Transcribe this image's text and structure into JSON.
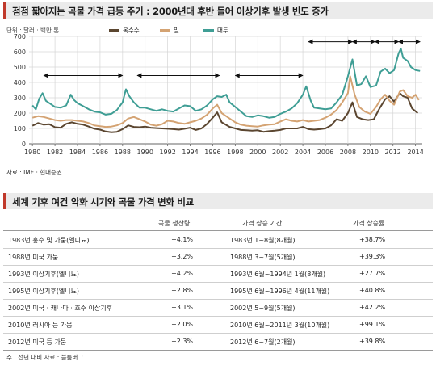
{
  "top_panel": {
    "title": "점점 짧아지는 곡물 가격 급등 주기 : 2000년대 후반 들어 이상기후 발생 빈도 증가",
    "unit": "단위 : 달러 · 백만 톤",
    "source": "자료 : IMF · 현대증권"
  },
  "chart_data": {
    "type": "line",
    "xlim": [
      1979.7,
      2014.6
    ],
    "ylim": [
      0,
      700
    ],
    "y_ticks": [
      "0",
      "100",
      "200",
      "300",
      "400",
      "500",
      "600",
      "700"
    ],
    "y_tick_values": [
      0,
      100,
      200,
      300,
      400,
      500,
      600,
      700
    ],
    "x_ticks": [
      "1980",
      "1982",
      "1984",
      "1986",
      "1988",
      "1990",
      "1992",
      "1994",
      "1996",
      "1998",
      "2000",
      "2002",
      "2004",
      "2006",
      "2008",
      "2010",
      "2012",
      "2014"
    ],
    "x_tick_values": [
      1980,
      1982,
      1984,
      1986,
      1988,
      1990,
      1992,
      1994,
      1996,
      1998,
      2000,
      2002,
      2004,
      2006,
      2008,
      2010,
      2012,
      2014
    ],
    "grid": true,
    "legend_placement": "top",
    "series": [
      {
        "name": "옥수수",
        "color": "#5b4630",
        "points": [
          [
            1980.0,
            118
          ],
          [
            1980.5,
            135
          ],
          [
            1981.0,
            125
          ],
          [
            1981.5,
            128
          ],
          [
            1982.0,
            108
          ],
          [
            1982.5,
            105
          ],
          [
            1983.0,
            130
          ],
          [
            1983.5,
            140
          ],
          [
            1984.0,
            130
          ],
          [
            1984.5,
            125
          ],
          [
            1985.0,
            112
          ],
          [
            1985.5,
            98
          ],
          [
            1986.0,
            92
          ],
          [
            1986.5,
            80
          ],
          [
            1987.0,
            75
          ],
          [
            1987.5,
            78
          ],
          [
            1988.0,
            95
          ],
          [
            1988.5,
            120
          ],
          [
            1989.0,
            110
          ],
          [
            1989.5,
            108
          ],
          [
            1990.0,
            112
          ],
          [
            1990.5,
            105
          ],
          [
            1991.0,
            102
          ],
          [
            1991.5,
            100
          ],
          [
            1992.0,
            98
          ],
          [
            1992.5,
            95
          ],
          [
            1993.0,
            92
          ],
          [
            1993.5,
            98
          ],
          [
            1994.0,
            105
          ],
          [
            1994.5,
            90
          ],
          [
            1995.0,
            100
          ],
          [
            1995.5,
            130
          ],
          [
            1996.0,
            170
          ],
          [
            1996.4,
            205
          ],
          [
            1996.8,
            140
          ],
          [
            1997.5,
            110
          ],
          [
            1998.0,
            100
          ],
          [
            1998.5,
            90
          ],
          [
            1999.0,
            88
          ],
          [
            1999.5,
            85
          ],
          [
            2000.0,
            88
          ],
          [
            2000.5,
            78
          ],
          [
            2001.0,
            82
          ],
          [
            2001.5,
            85
          ],
          [
            2002.0,
            90
          ],
          [
            2002.5,
            100
          ],
          [
            2003.0,
            100
          ],
          [
            2003.5,
            100
          ],
          [
            2004.0,
            110
          ],
          [
            2004.5,
            95
          ],
          [
            2005.0,
            92
          ],
          [
            2005.5,
            95
          ],
          [
            2006.0,
            100
          ],
          [
            2006.5,
            120
          ],
          [
            2007.0,
            160
          ],
          [
            2007.5,
            150
          ],
          [
            2008.0,
            200
          ],
          [
            2008.4,
            270
          ],
          [
            2008.8,
            175
          ],
          [
            2009.3,
            160
          ],
          [
            2009.8,
            155
          ],
          [
            2010.3,
            160
          ],
          [
            2010.8,
            230
          ],
          [
            2011.3,
            290
          ],
          [
            2011.7,
            310
          ],
          [
            2012.1,
            275
          ],
          [
            2012.6,
            330
          ],
          [
            2012.9,
            310
          ],
          [
            2013.3,
            300
          ],
          [
            2013.7,
            230
          ],
          [
            2014.2,
            200
          ]
        ]
      },
      {
        "name": "밀",
        "color": "#d4a373",
        "points": [
          [
            1980.0,
            170
          ],
          [
            1980.5,
            180
          ],
          [
            1981.0,
            175
          ],
          [
            1981.5,
            165
          ],
          [
            1982.0,
            155
          ],
          [
            1982.5,
            150
          ],
          [
            1983.0,
            155
          ],
          [
            1983.5,
            155
          ],
          [
            1984.0,
            150
          ],
          [
            1984.5,
            145
          ],
          [
            1985.0,
            135
          ],
          [
            1985.5,
            120
          ],
          [
            1986.0,
            115
          ],
          [
            1986.5,
            110
          ],
          [
            1987.0,
            112
          ],
          [
            1987.5,
            120
          ],
          [
            1988.0,
            135
          ],
          [
            1988.5,
            165
          ],
          [
            1989.0,
            175
          ],
          [
            1989.5,
            160
          ],
          [
            1990.0,
            145
          ],
          [
            1990.5,
            125
          ],
          [
            1991.0,
            118
          ],
          [
            1991.5,
            128
          ],
          [
            1992.0,
            150
          ],
          [
            1992.5,
            145
          ],
          [
            1993.0,
            135
          ],
          [
            1993.5,
            130
          ],
          [
            1994.0,
            140
          ],
          [
            1994.5,
            150
          ],
          [
            1995.0,
            165
          ],
          [
            1995.5,
            190
          ],
          [
            1996.0,
            230
          ],
          [
            1996.4,
            255
          ],
          [
            1996.8,
            200
          ],
          [
            1997.5,
            165
          ],
          [
            1998.0,
            140
          ],
          [
            1998.5,
            125
          ],
          [
            1999.0,
            118
          ],
          [
            1999.5,
            115
          ],
          [
            2000.0,
            112
          ],
          [
            2000.5,
            120
          ],
          [
            2001.0,
            125
          ],
          [
            2001.5,
            128
          ],
          [
            2002.0,
            145
          ],
          [
            2002.5,
            160
          ],
          [
            2003.0,
            150
          ],
          [
            2003.5,
            145
          ],
          [
            2004.0,
            155
          ],
          [
            2004.5,
            145
          ],
          [
            2005.0,
            150
          ],
          [
            2005.5,
            155
          ],
          [
            2006.0,
            170
          ],
          [
            2006.5,
            190
          ],
          [
            2007.0,
            220
          ],
          [
            2007.5,
            270
          ],
          [
            2008.0,
            330
          ],
          [
            2008.2,
            440
          ],
          [
            2008.6,
            320
          ],
          [
            2009.0,
            240
          ],
          [
            2009.5,
            210
          ],
          [
            2010.0,
            195
          ],
          [
            2010.5,
            240
          ],
          [
            2010.9,
            290
          ],
          [
            2011.3,
            320
          ],
          [
            2011.7,
            280
          ],
          [
            2012.1,
            255
          ],
          [
            2012.6,
            340
          ],
          [
            2012.9,
            350
          ],
          [
            2013.3,
            310
          ],
          [
            2013.7,
            300
          ],
          [
            2014.0,
            320
          ],
          [
            2014.3,
            285
          ]
        ]
      },
      {
        "name": "대두",
        "color": "#3f9e95",
        "points": [
          [
            1980.0,
            250
          ],
          [
            1980.3,
            225
          ],
          [
            1980.6,
            295
          ],
          [
            1980.9,
            330
          ],
          [
            1981.2,
            280
          ],
          [
            1981.6,
            260
          ],
          [
            1982.0,
            240
          ],
          [
            1982.5,
            235
          ],
          [
            1983.0,
            250
          ],
          [
            1983.4,
            320
          ],
          [
            1983.7,
            285
          ],
          [
            1984.0,
            265
          ],
          [
            1984.5,
            245
          ],
          [
            1985.0,
            225
          ],
          [
            1985.5,
            210
          ],
          [
            1986.0,
            205
          ],
          [
            1986.5,
            190
          ],
          [
            1987.0,
            195
          ],
          [
            1987.5,
            220
          ],
          [
            1988.0,
            270
          ],
          [
            1988.3,
            355
          ],
          [
            1988.6,
            310
          ],
          [
            1989.0,
            270
          ],
          [
            1989.5,
            235
          ],
          [
            1990.0,
            235
          ],
          [
            1990.5,
            225
          ],
          [
            1991.0,
            215
          ],
          [
            1991.5,
            225
          ],
          [
            1992.0,
            215
          ],
          [
            1992.5,
            210
          ],
          [
            1993.0,
            230
          ],
          [
            1993.5,
            250
          ],
          [
            1994.0,
            245
          ],
          [
            1994.5,
            215
          ],
          [
            1995.0,
            225
          ],
          [
            1995.5,
            250
          ],
          [
            1996.0,
            290
          ],
          [
            1996.4,
            310
          ],
          [
            1996.8,
            305
          ],
          [
            1997.2,
            320
          ],
          [
            1997.5,
            270
          ],
          [
            1998.0,
            240
          ],
          [
            1998.5,
            210
          ],
          [
            1999.0,
            180
          ],
          [
            1999.5,
            175
          ],
          [
            2000.0,
            185
          ],
          [
            2000.5,
            180
          ],
          [
            2001.0,
            170
          ],
          [
            2001.5,
            175
          ],
          [
            2002.0,
            195
          ],
          [
            2002.5,
            210
          ],
          [
            2003.0,
            230
          ],
          [
            2003.5,
            265
          ],
          [
            2004.0,
            320
          ],
          [
            2004.3,
            375
          ],
          [
            2004.7,
            280
          ],
          [
            2005.0,
            235
          ],
          [
            2005.5,
            230
          ],
          [
            2006.0,
            225
          ],
          [
            2006.5,
            230
          ],
          [
            2007.0,
            270
          ],
          [
            2007.5,
            320
          ],
          [
            2008.0,
            440
          ],
          [
            2008.4,
            550
          ],
          [
            2008.8,
            380
          ],
          [
            2009.2,
            390
          ],
          [
            2009.6,
            440
          ],
          [
            2010.0,
            370
          ],
          [
            2010.5,
            380
          ],
          [
            2010.9,
            470
          ],
          [
            2011.3,
            490
          ],
          [
            2011.7,
            460
          ],
          [
            2012.1,
            480
          ],
          [
            2012.5,
            590
          ],
          [
            2012.7,
            620
          ],
          [
            2012.9,
            560
          ],
          [
            2013.3,
            540
          ],
          [
            2013.6,
            500
          ],
          [
            2014.0,
            480
          ],
          [
            2014.4,
            475
          ]
        ]
      }
    ],
    "arrows": [
      [
        1981.0,
        1988.0
      ],
      [
        1989.3,
        1996.6
      ],
      [
        1998.0,
        2004.0
      ],
      [
        2004.5,
        2008.4
      ],
      [
        2008.4,
        2010.4
      ],
      [
        2010.4,
        2012.5
      ],
      [
        2012.5,
        2014.4
      ]
    ]
  },
  "bottom_panel": {
    "title": "세계 기후 여건 악화 시기와 곡물 가격 변화 비교",
    "columns": [
      "곡물 생산량",
      "가격 상승 기간",
      "가격 상승률"
    ],
    "rows": [
      {
        "event": "1983년 홍수 및 가뭄(엘니뇨)",
        "production": "−4.1%",
        "period": "1983년 1~8월(8개월)",
        "rise": "+38.7%"
      },
      {
        "event": "1988년 미국 가뭄",
        "production": "−3.2%",
        "period": "1988년 3~7월(5개월)",
        "rise": "+39.3%"
      },
      {
        "event": "1993년 이상기후(엘니뇨)",
        "production": "−4.2%",
        "period": "1993년 6월~1994년 1월(8개월)",
        "rise": "+27.7%"
      },
      {
        "event": "1995년 이상기후(엘니뇨)",
        "production": "−2.8%",
        "period": "1995년 6월~1996년 4월(11개월)",
        "rise": "+40.8%"
      },
      {
        "event": "2002년 미국 · 캐나다 · 호주 이상기후",
        "production": "−3.1%",
        "period": "2002년 5~9월(5개월)",
        "rise": "+42.2%"
      },
      {
        "event": "2010년 러시아 등 가뭄",
        "production": "−2.0%",
        "period": "2010년 6월~2011년 3월(10개월)",
        "rise": "+99.1%"
      },
      {
        "event": "2012년 미국 등 가뭄",
        "production": "−2.3%",
        "period": "2012년 6~7월(2개월)",
        "rise": "+39.8%"
      }
    ],
    "source": "주 : 전년 대비   자료 : 블룸버그"
  }
}
